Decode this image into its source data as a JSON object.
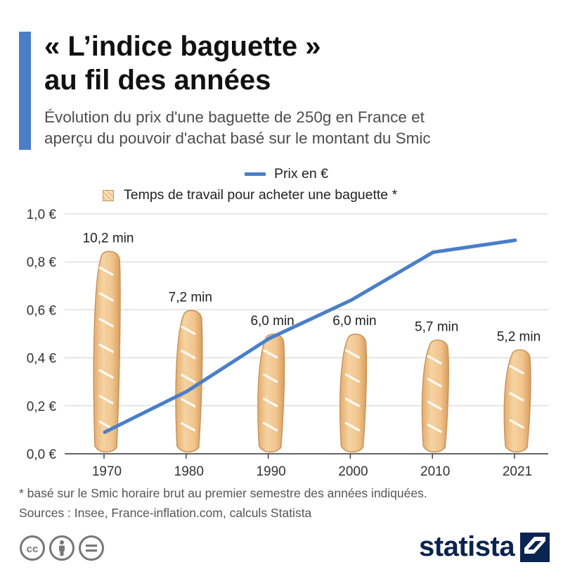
{
  "header": {
    "title_line1": "« L’indice baguette »",
    "title_line2": "au fil des années",
    "subtitle_line1": "Évolution du prix d'une baguette de 250g en France et",
    "subtitle_line2": "aperçu du pouvoir d'achat basé sur le montant du Smic"
  },
  "chart_data": {
    "type": "line",
    "title": "« L’indice baguette » au fil des années",
    "categories": [
      "1970",
      "1980",
      "1990",
      "2000",
      "2010",
      "2021"
    ],
    "series": [
      {
        "name": "Prix en €",
        "kind": "line",
        "values": [
          0.09,
          0.26,
          0.48,
          0.64,
          0.84,
          0.89
        ],
        "color": "#4a7fc8"
      },
      {
        "name": "Temps de travail pour acheter une baguette *",
        "kind": "pictogram",
        "values": [
          10.2,
          7.2,
          6.0,
          6.0,
          5.7,
          5.2
        ],
        "unit": "min",
        "color": "#f2c893"
      }
    ],
    "data_labels": [
      "10,2  min",
      "7,2 min",
      "6,0 min",
      "6,0 min",
      "5,7 min",
      "5,2 min"
    ],
    "y_ticks": [
      "0,0 €",
      "0,2 €",
      "0,4 €",
      "0,6 €",
      "0,8 €",
      "1,0 €"
    ],
    "ylim": [
      0,
      1.0
    ],
    "xlabel": "",
    "ylabel": "",
    "grid": true,
    "legend": {
      "line_label": "Prix en €",
      "pictogram_label": "Temps de travail pour acheter une baguette *",
      "placement": "top-center"
    }
  },
  "footer": {
    "footnote": "* basé sur le Smic horaire brut au premier semestre des années indiquées.",
    "sources": "Sources : Insee, France-inflation.com, calculs Statista",
    "brand": "statista"
  },
  "colors": {
    "accent": "#4a7fc8",
    "baguette_fill": "#f2c893",
    "baguette_stroke": "#c9935a",
    "brand": "#0b2350"
  }
}
